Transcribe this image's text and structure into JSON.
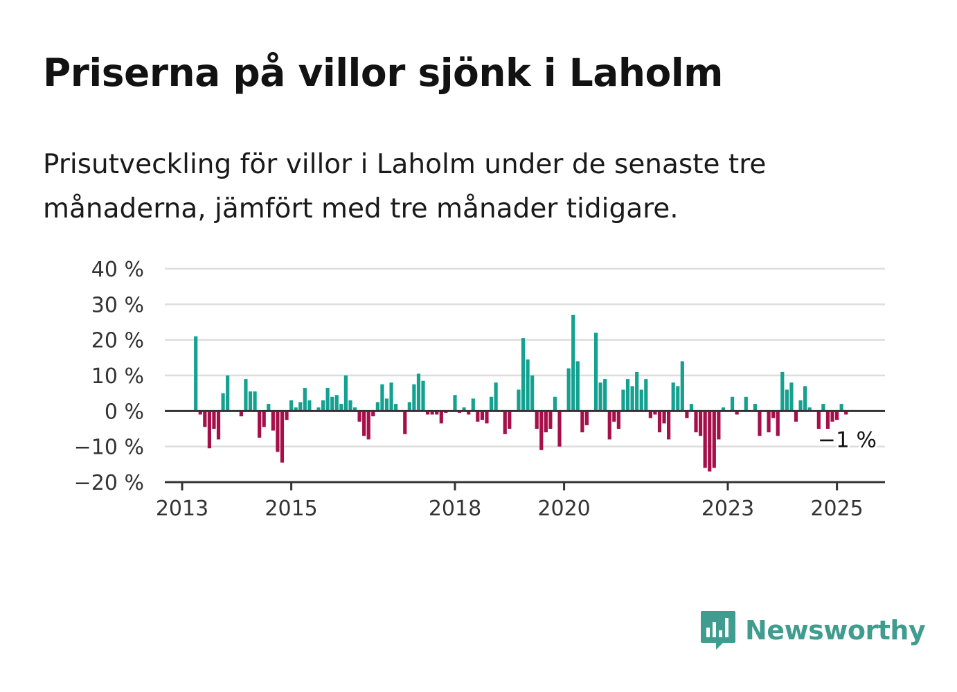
{
  "title": "Priserna på villor sjönk i Laholm",
  "subtitle": "Prisutveckling för villor i Laholm under de senaste tre månaderna, jämfört med tre månader tidigare.",
  "brand": {
    "name": "Newsworthy",
    "color": "#3f9c8e"
  },
  "colors": {
    "positive": "#14a190",
    "negative": "#a50f4a",
    "grid": "#dddddd",
    "axis": "#333333"
  },
  "chart_data": {
    "type": "bar",
    "ylim": [
      -20,
      40
    ],
    "y_ticks": [
      {
        "value": 40,
        "label": "40 %"
      },
      {
        "value": 30,
        "label": "30 %"
      },
      {
        "value": 20,
        "label": "20 %"
      },
      {
        "value": 10,
        "label": "10 %"
      },
      {
        "value": 0,
        "label": "0 %"
      },
      {
        "value": -10,
        "label": "−10 %"
      },
      {
        "value": -20,
        "label": "−20 %"
      }
    ],
    "x_ticks": [
      {
        "value": 2013,
        "label": "2013"
      },
      {
        "value": 2015,
        "label": "2015"
      },
      {
        "value": 2018,
        "label": "2018"
      },
      {
        "value": 2020,
        "label": "2020"
      },
      {
        "value": 2023,
        "label": "2023"
      },
      {
        "value": 2025,
        "label": "2025"
      }
    ],
    "start": "2013-04",
    "frequency": "monthly",
    "end_label": "−1 %",
    "values": [
      21,
      -1,
      -4.5,
      -10.5,
      -5,
      -8,
      5,
      10,
      0,
      0,
      -1.5,
      9,
      5.5,
      5.5,
      -7.5,
      -4.5,
      2,
      -5.5,
      -11.5,
      -14.5,
      -2.5,
      3,
      1,
      2.5,
      6.5,
      3,
      0,
      1,
      3,
      6.5,
      4,
      4.5,
      2,
      10,
      3,
      1,
      -3,
      -7,
      -8,
      -1.5,
      2.5,
      7.5,
      3.5,
      8,
      2,
      0,
      -6.5,
      2.5,
      7.5,
      10.5,
      8.5,
      -1,
      -1,
      -1,
      -3.5,
      -0.5,
      0,
      4.5,
      -0.5,
      1,
      -1,
      3.5,
      -3,
      -2.5,
      -3.5,
      4,
      8,
      0,
      -6.5,
      -5,
      0,
      6,
      20.5,
      14.5,
      10,
      -5,
      -11,
      -6,
      -5,
      4,
      -10,
      0,
      12,
      27,
      14,
      -6,
      -4,
      0,
      22,
      8,
      9,
      -8,
      -3,
      -5,
      6,
      9,
      7,
      11,
      6,
      9,
      -2,
      -1,
      -6,
      -3.5,
      -8,
      8,
      7,
      14,
      -2,
      2,
      -6,
      -7,
      -16,
      -17,
      -16,
      -8,
      1,
      0,
      4,
      -1,
      0,
      4,
      0,
      2,
      -7,
      0,
      -6,
      -2,
      -7,
      11,
      6,
      8,
      -3,
      3,
      7,
      1,
      0,
      -5,
      2,
      -5,
      -3,
      -2.5,
      2,
      -1
    ]
  }
}
